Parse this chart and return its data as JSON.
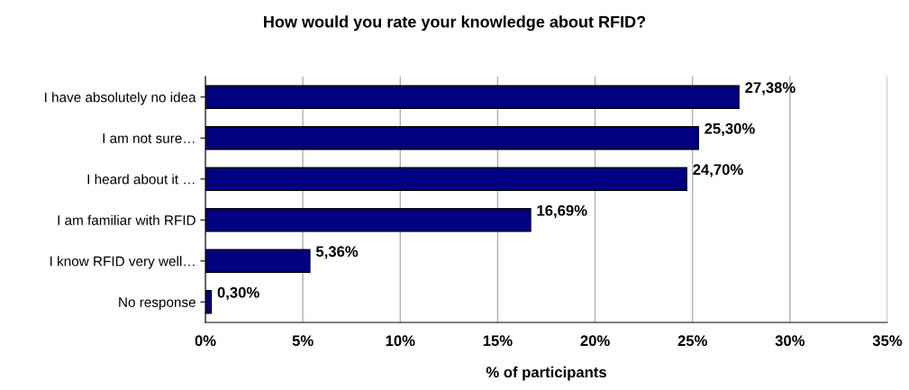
{
  "chart_data": {
    "type": "bar",
    "orientation": "horizontal",
    "title": "How would you rate your knowledge about RFID?",
    "xlabel": "% of participants",
    "categories": [
      "I have absolutely no idea",
      "I am not sure…",
      "I heard about it …",
      "I am familiar with RFID",
      "I know RFID very well…",
      "No response"
    ],
    "values": [
      27.38,
      25.3,
      24.7,
      16.69,
      5.36,
      0.3
    ],
    "value_labels": [
      "27,38%",
      "25,30%",
      "24,70%",
      "16,69%",
      "5,36%",
      "0,30%"
    ],
    "color": "#000080",
    "xlim": [
      0,
      35
    ],
    "xticks": [
      {
        "value": 0,
        "label": "0%"
      },
      {
        "value": 5,
        "label": "5%"
      },
      {
        "value": 10,
        "label": "10%"
      },
      {
        "value": 15,
        "label": "15%"
      },
      {
        "value": 20,
        "label": "20%"
      },
      {
        "value": 25,
        "label": "25%"
      },
      {
        "value": 30,
        "label": "30%"
      },
      {
        "value": 35,
        "label": "35%"
      }
    ],
    "grid": "x",
    "legend": false
  }
}
